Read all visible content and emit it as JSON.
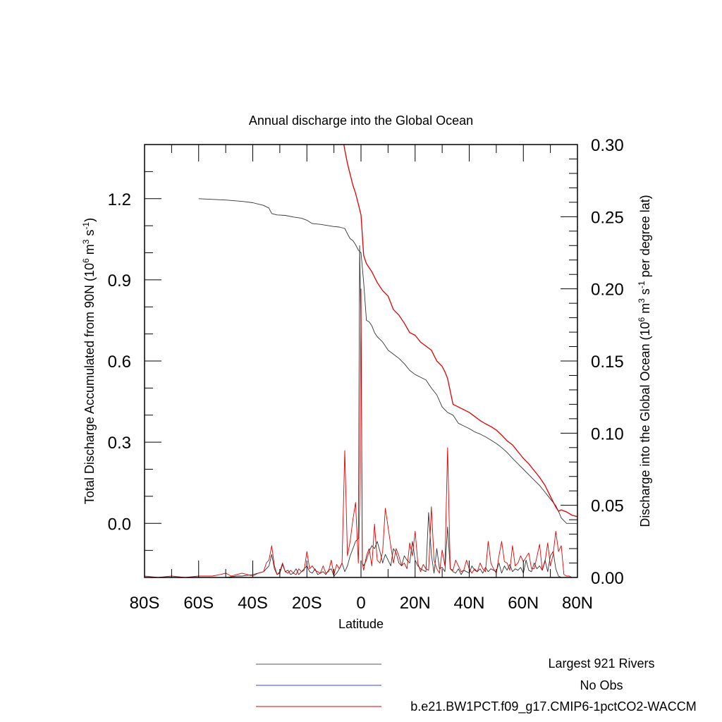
{
  "chart_data": {
    "type": "line",
    "title": "Annual discharge into the Global Ocean",
    "xlabel": "Latitude",
    "ylabel_left_main": "Total Discharge Accumulated from 90N (10",
    "ylabel_left_sup1": "6",
    "ylabel_left_mid": " m",
    "ylabel_left_sup2": "3",
    "ylabel_left_mid2": " s",
    "ylabel_left_sup3": "-1",
    "ylabel_left_end": ")",
    "ylabel_right_main": "Discharge into the Global Ocean (10",
    "ylabel_right_sup1": "6",
    "ylabel_right_mid": " m",
    "ylabel_right_sup2": "3",
    "ylabel_right_mid2": " s",
    "ylabel_right_sup3": "-1",
    "ylabel_right_end": " per degree lat)",
    "xlim": [
      -80,
      80
    ],
    "ylim_left": [
      -0.2,
      1.4
    ],
    "ylim_right": [
      0.0,
      0.3
    ],
    "x_ticks": [
      -80,
      -60,
      -40,
      -20,
      0,
      20,
      40,
      60,
      80
    ],
    "x_tick_labels": [
      "80S",
      "60S",
      "40S",
      "20S",
      "0",
      "20N",
      "40N",
      "60N",
      "80N"
    ],
    "y_left_ticks": [
      0.0,
      0.3,
      0.6,
      0.9,
      1.2
    ],
    "y_left_tick_labels": [
      "0.0",
      "0.3",
      "0.6",
      "0.9",
      "1.2"
    ],
    "y_right_ticks": [
      0.0,
      0.05,
      0.1,
      0.15,
      0.2,
      0.25,
      0.3
    ],
    "y_right_tick_labels": [
      "0.00",
      "0.05",
      "0.10",
      "0.15",
      "0.20",
      "0.25",
      "0.30"
    ],
    "legend_placement": "bottom",
    "series": [
      {
        "name": "Largest 921 Rivers",
        "axis": "left",
        "color": "#333333",
        "x": [
          -60,
          -50,
          -44,
          -40,
          -38,
          -36,
          -34,
          -33,
          -31,
          -28,
          -25,
          -22,
          -20,
          -18,
          -15,
          -12,
          -10,
          -8,
          -6,
          -5,
          -4,
          -3,
          -2,
          -1,
          0,
          1,
          2,
          3,
          4,
          5,
          6,
          8,
          10,
          12,
          14,
          16,
          18,
          20,
          22,
          24,
          26,
          28,
          30,
          32,
          34,
          36,
          38,
          40,
          42,
          44,
          46,
          48,
          50,
          52,
          54,
          56,
          58,
          60,
          62,
          64,
          66,
          68,
          70,
          72,
          73,
          74,
          76,
          78,
          80
        ],
        "y": [
          1.2,
          1.195,
          1.19,
          1.185,
          1.18,
          1.175,
          1.165,
          1.145,
          1.14,
          1.138,
          1.132,
          1.128,
          1.12,
          1.108,
          1.105,
          1.1,
          1.097,
          1.095,
          1.09,
          1.07,
          1.052,
          1.045,
          1.03,
          1.01,
          1.0,
          0.89,
          0.75,
          0.745,
          0.73,
          0.705,
          0.69,
          0.67,
          0.64,
          0.625,
          0.61,
          0.59,
          0.565,
          0.55,
          0.54,
          0.53,
          0.5,
          0.475,
          0.43,
          0.41,
          0.4,
          0.37,
          0.36,
          0.35,
          0.338,
          0.33,
          0.32,
          0.308,
          0.295,
          0.28,
          0.262,
          0.24,
          0.22,
          0.2,
          0.18,
          0.16,
          0.14,
          0.115,
          0.09,
          0.065,
          0.045,
          0.02,
          0.0,
          0.0,
          0.0
        ]
      },
      {
        "name": "No Obs",
        "axis": "left",
        "color": "#3344ee",
        "x": [],
        "y": []
      },
      {
        "name": "b.e21.BW1PCT.f09_g17.CMIP6-1pctCO2-WACCM",
        "axis": "left",
        "color": "#e00000",
        "x": [
          -7,
          -6,
          -5,
          -4,
          -3,
          -2,
          -1,
          0,
          1,
          2,
          3,
          4,
          5,
          6,
          8,
          10,
          12,
          14,
          16,
          18,
          20,
          22,
          24,
          26,
          28,
          30,
          31,
          32,
          34,
          36,
          38,
          40,
          42,
          44,
          46,
          48,
          50,
          52,
          54,
          56,
          58,
          60,
          62,
          64,
          66,
          68,
          70,
          72,
          73,
          74,
          76,
          78,
          80
        ],
        "y": [
          1.44,
          1.38,
          1.33,
          1.29,
          1.25,
          1.22,
          1.18,
          1.14,
          0.99,
          0.96,
          0.945,
          0.93,
          0.91,
          0.89,
          0.86,
          0.84,
          0.79,
          0.77,
          0.74,
          0.705,
          0.695,
          0.67,
          0.655,
          0.64,
          0.6,
          0.58,
          0.56,
          0.535,
          0.44,
          0.43,
          0.42,
          0.41,
          0.395,
          0.38,
          0.368,
          0.358,
          0.345,
          0.326,
          0.305,
          0.29,
          0.265,
          0.24,
          0.22,
          0.195,
          0.17,
          0.14,
          0.1,
          0.06,
          0.045,
          0.05,
          0.042,
          0.03,
          0.025
        ]
      },
      {
        "name": "Largest 921 Rivers",
        "axis": "right",
        "color": "#333333",
        "x": [
          -80,
          -70,
          -60,
          -50,
          -46,
          -44,
          -40,
          -38,
          -36,
          -34,
          -33,
          -32,
          -31,
          -30,
          -29,
          -28,
          -27,
          -26,
          -25,
          -24,
          -23,
          -22,
          -21,
          -20,
          -19,
          -18,
          -17,
          -16,
          -15,
          -14,
          -13,
          -12,
          -11,
          -10,
          -9,
          -8,
          -7,
          -6,
          -5,
          -4,
          -3,
          -2,
          -1,
          -0.5,
          0,
          0.5,
          1,
          2,
          3,
          4,
          5,
          6,
          7,
          8,
          9,
          10,
          11,
          12,
          13,
          14,
          15,
          16,
          17,
          18,
          19,
          20,
          21,
          22,
          23,
          24,
          25,
          26,
          27,
          28,
          29,
          30,
          31,
          32,
          33,
          34,
          35,
          36,
          37,
          38,
          39,
          40,
          41,
          42,
          43,
          44,
          45,
          46,
          47,
          48,
          49,
          50,
          51,
          52,
          53,
          54,
          55,
          56,
          57,
          58,
          59,
          60,
          61,
          62,
          63,
          64,
          65,
          66,
          67,
          68,
          69,
          70,
          71,
          72,
          73,
          74,
          75,
          76,
          77,
          78,
          79,
          80
        ],
        "y": [
          0.0,
          0.0,
          0.0,
          0.0,
          0.001,
          0.001,
          0.002,
          0.003,
          0.004,
          0.008,
          0.016,
          0.006,
          0.002,
          0.003,
          0.009,
          0.004,
          0.005,
          0.002,
          0.003,
          0.006,
          0.002,
          0.004,
          0.006,
          0.008,
          0.004,
          0.003,
          0.006,
          0.002,
          0.003,
          0.004,
          0.002,
          0.005,
          0.006,
          0.001,
          0.003,
          0.006,
          0.01,
          0.004,
          0.008,
          0.015,
          0.02,
          0.025,
          0.027,
          0.23,
          0.17,
          0.01,
          0.008,
          0.012,
          0.018,
          0.022,
          0.02,
          0.025,
          0.018,
          0.01,
          0.016,
          0.012,
          0.008,
          0.02,
          0.017,
          0.01,
          0.008,
          0.015,
          0.012,
          0.01,
          0.025,
          0.012,
          0.008,
          0.006,
          0.005,
          0.004,
          0.045,
          0.016,
          0.003,
          0.02,
          0.006,
          0.007,
          0.004,
          0.035,
          0.006,
          0.004,
          0.003,
          0.006,
          0.002,
          0.005,
          0.004,
          0.003,
          0.008,
          0.005,
          0.004,
          0.006,
          0.003,
          0.007,
          0.004,
          0.006,
          0.005,
          0.004,
          0.01,
          0.003,
          0.008,
          0.005,
          0.009,
          0.004,
          0.006,
          0.005,
          0.007,
          0.003,
          0.012,
          0.005,
          0.004,
          0.01,
          0.006,
          0.008,
          0.005,
          0.012,
          0.004,
          0.015,
          0.018,
          0.006,
          0.001,
          0.0,
          0.0,
          0.0,
          0.0,
          0.0,
          0.0,
          0.0
        ]
      },
      {
        "name": "b.e21.BW1PCT.f09_g17.CMIP6-1pctCO2-WACCM",
        "axis": "right",
        "color": "#e00000",
        "x": [
          -80,
          -75,
          -70,
          -65,
          -60,
          -55,
          -52,
          -50,
          -48,
          -46,
          -44,
          -42,
          -40,
          -38,
          -36,
          -35,
          -34,
          -33,
          -32,
          -31,
          -30,
          -29,
          -28,
          -27,
          -26,
          -25,
          -24,
          -23,
          -22,
          -21,
          -20,
          -19,
          -18,
          -17,
          -16,
          -15,
          -14,
          -13,
          -12,
          -11,
          -10,
          -9,
          -8,
          -7,
          -6,
          -5,
          -4,
          -3,
          -2,
          -1,
          -0.5,
          0,
          0.5,
          1,
          2,
          3,
          4,
          5,
          6,
          7,
          8,
          9,
          10,
          11,
          12,
          13,
          14,
          15,
          16,
          17,
          18,
          19,
          20,
          21,
          22,
          23,
          24,
          25,
          26,
          27,
          28,
          29,
          30,
          31,
          32,
          33,
          34,
          35,
          36,
          37,
          38,
          39,
          40,
          41,
          42,
          43,
          44,
          45,
          46,
          47,
          48,
          49,
          50,
          51,
          52,
          53,
          54,
          55,
          56,
          57,
          58,
          59,
          60,
          61,
          62,
          63,
          64,
          65,
          66,
          67,
          68,
          69,
          70,
          71,
          72,
          73,
          74,
          75,
          76,
          77,
          78,
          79,
          80
        ],
        "y": [
          0.001,
          0.0,
          0.001,
          0.0,
          0.001,
          0.001,
          0.002,
          0.003,
          0.001,
          0.002,
          0.003,
          0.002,
          0.001,
          0.003,
          0.004,
          0.01,
          0.012,
          0.022,
          0.008,
          0.002,
          0.004,
          0.01,
          0.004,
          0.003,
          0.005,
          0.003,
          0.002,
          0.006,
          0.004,
          0.005,
          0.018,
          0.006,
          0.008,
          0.005,
          0.004,
          0.003,
          0.008,
          0.003,
          0.004,
          0.012,
          0.002,
          0.009,
          0.006,
          0.01,
          0.088,
          0.015,
          0.025,
          0.04,
          0.052,
          0.01,
          0.05,
          0.2,
          0.01,
          0.005,
          0.015,
          0.02,
          0.008,
          0.037,
          0.012,
          0.01,
          0.018,
          0.048,
          0.035,
          0.022,
          0.01,
          0.02,
          0.015,
          0.008,
          0.01,
          0.006,
          0.024,
          0.015,
          0.032,
          0.01,
          0.004,
          0.009,
          0.006,
          0.005,
          0.049,
          0.012,
          0.006,
          0.003,
          0.019,
          0.008,
          0.09,
          0.006,
          0.005,
          0.012,
          0.008,
          0.004,
          0.005,
          0.012,
          0.006,
          0.003,
          0.006,
          0.004,
          0.01,
          0.006,
          0.004,
          0.025,
          0.01,
          0.006,
          0.003,
          0.015,
          0.025,
          0.011,
          0.01,
          0.005,
          0.022,
          0.008,
          0.01,
          0.015,
          0.011,
          0.014,
          0.017,
          0.006,
          0.006,
          0.014,
          0.023,
          0.005,
          0.011,
          0.024,
          0.008,
          0.016,
          0.032,
          0.018,
          0.022,
          0.002,
          0.001,
          0.001,
          0.0,
          0.0,
          0.0
        ]
      }
    ]
  },
  "legend": {
    "items": [
      {
        "label": "Largest 921 Rivers",
        "color": "#555555"
      },
      {
        "label": "No Obs",
        "color": "#3344ee"
      },
      {
        "label": "b.e21.BW1PCT.f09_g17.CMIP6-1pctCO2-WACCM",
        "color": "#e00000"
      }
    ]
  }
}
